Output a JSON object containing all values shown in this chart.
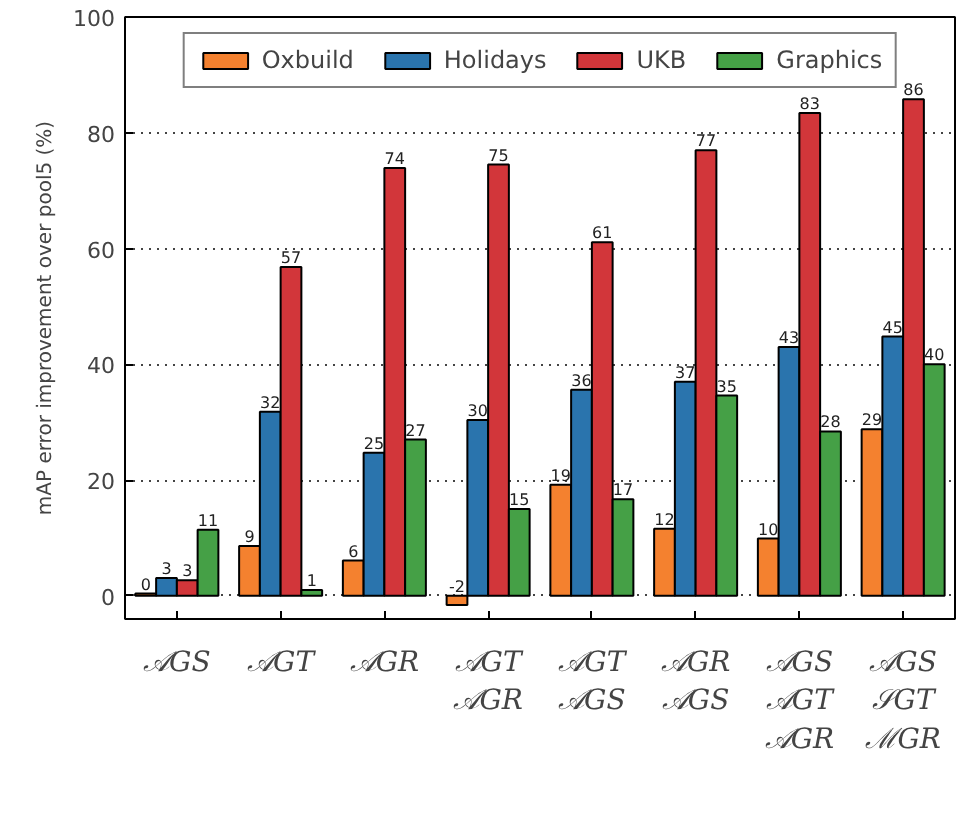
{
  "chart_data": {
    "type": "bar",
    "ylabel": "mAP error improvement over pool5 (%)",
    "categories": [
      "𝒜GS",
      "𝒜GT",
      "𝒜GR",
      "𝒜GT\n𝒜GR",
      "𝒜GT\n𝒜GS",
      "𝒜GR\n𝒜GS",
      "𝒜GS\n𝒜GT\n𝒜GR",
      "𝒜GS\n𝒮GT\nℳGR"
    ],
    "series": [
      {
        "name": "Oxbuild",
        "color": "#f4812f",
        "values": [
          0.4,
          8.6,
          6.1,
          -1.6,
          19.2,
          11.6,
          9.9,
          28.8
        ],
        "value_labels": [
          "0",
          "9",
          "6",
          "-2",
          "19",
          "12",
          "10",
          "29"
        ]
      },
      {
        "name": "Holidays",
        "color": "#2a74ad",
        "values": [
          3.1,
          31.8,
          24.7,
          30.4,
          35.6,
          37.0,
          43.0,
          44.8
        ],
        "value_labels": [
          "3",
          "32",
          "25",
          "30",
          "36",
          "37",
          "43",
          "45"
        ]
      },
      {
        "name": "UKB",
        "color": "#d2363a",
        "values": [
          2.7,
          56.8,
          73.9,
          74.5,
          61.1,
          77.0,
          83.4,
          85.8
        ],
        "value_labels": [
          "3",
          "57",
          "74",
          "75",
          "61",
          "77",
          "83",
          "86"
        ]
      },
      {
        "name": "Graphics",
        "color": "#45a046",
        "values": [
          11.4,
          1.0,
          27.0,
          15.0,
          16.7,
          34.6,
          28.4,
          40.0
        ],
        "value_labels": [
          "11",
          "1",
          "27",
          "15",
          "17",
          "35",
          "28",
          "40"
        ]
      }
    ],
    "ylim": [
      -4,
      100
    ],
    "yticks": [
      0,
      20,
      40,
      60,
      80,
      100
    ],
    "grid": "y",
    "legend": "top"
  }
}
